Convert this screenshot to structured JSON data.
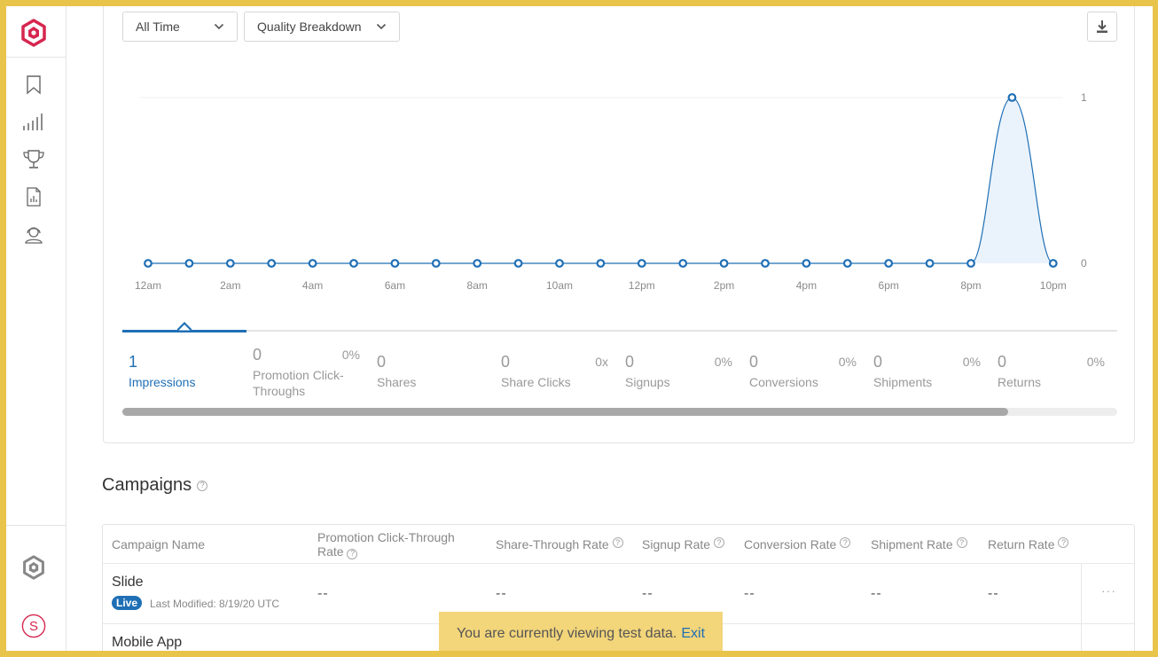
{
  "sidebar": {
    "items": [
      {
        "name": "bookmark-icon"
      },
      {
        "name": "bar-signal-icon"
      },
      {
        "name": "trophy-icon"
      },
      {
        "name": "report-icon"
      },
      {
        "name": "support-agent-icon"
      }
    ],
    "avatar_letter": "S"
  },
  "filters": {
    "time_range": "All Time",
    "breakdown": "Quality Breakdown"
  },
  "chart_data": {
    "type": "area",
    "x": [
      "12am",
      "1am",
      "2am",
      "3am",
      "4am",
      "5am",
      "6am",
      "7am",
      "8am",
      "9am",
      "10am",
      "11am",
      "12pm",
      "1pm",
      "2pm",
      "3pm",
      "4pm",
      "5pm",
      "6pm",
      "7pm",
      "8pm",
      "9pm",
      "10pm"
    ],
    "xticks": [
      "12am",
      "2am",
      "4am",
      "6am",
      "8am",
      "10am",
      "12pm",
      "2pm",
      "4pm",
      "6pm",
      "8pm",
      "10pm"
    ],
    "values": [
      0,
      0,
      0,
      0,
      0,
      0,
      0,
      0,
      0,
      0,
      0,
      0,
      0,
      0,
      0,
      0,
      0,
      0,
      0,
      0,
      0,
      1,
      0
    ],
    "yticks": [
      "1",
      "0"
    ],
    "ylim": [
      0,
      1
    ],
    "color": "#1f6fb5",
    "fill": "#eaf3fc"
  },
  "metrics": [
    {
      "value": "1",
      "label": "Impressions",
      "pct": ""
    },
    {
      "value": "0",
      "label": "Promotion Click-Throughs",
      "pct": "0%"
    },
    {
      "value": "0",
      "label": "Shares",
      "pct": ""
    },
    {
      "value": "0",
      "label": "Share Clicks",
      "pct": "0x"
    },
    {
      "value": "0",
      "label": "Signups",
      "pct": "0%"
    },
    {
      "value": "0",
      "label": "Conversions",
      "pct": "0%"
    },
    {
      "value": "0",
      "label": "Shipments",
      "pct": "0%"
    },
    {
      "value": "0",
      "label": "Returns",
      "pct": "0%"
    }
  ],
  "campaigns": {
    "title": "Campaigns",
    "help": "?",
    "columns": [
      "Campaign Name",
      "Promotion Click-Through Rate",
      "Share-Through Rate",
      "Signup Rate",
      "Conversion Rate",
      "Shipment Rate",
      "Return Rate"
    ],
    "rows": [
      {
        "name": "Slide",
        "status": "Live",
        "modified": "Last Modified: 8/19/20 UTC",
        "values": [
          "--",
          "--",
          "--",
          "--",
          "--",
          "--"
        ],
        "more": "···"
      },
      {
        "name": "Mobile App"
      }
    ]
  },
  "toast": {
    "message": "You are currently viewing test data.",
    "action": "Exit"
  }
}
